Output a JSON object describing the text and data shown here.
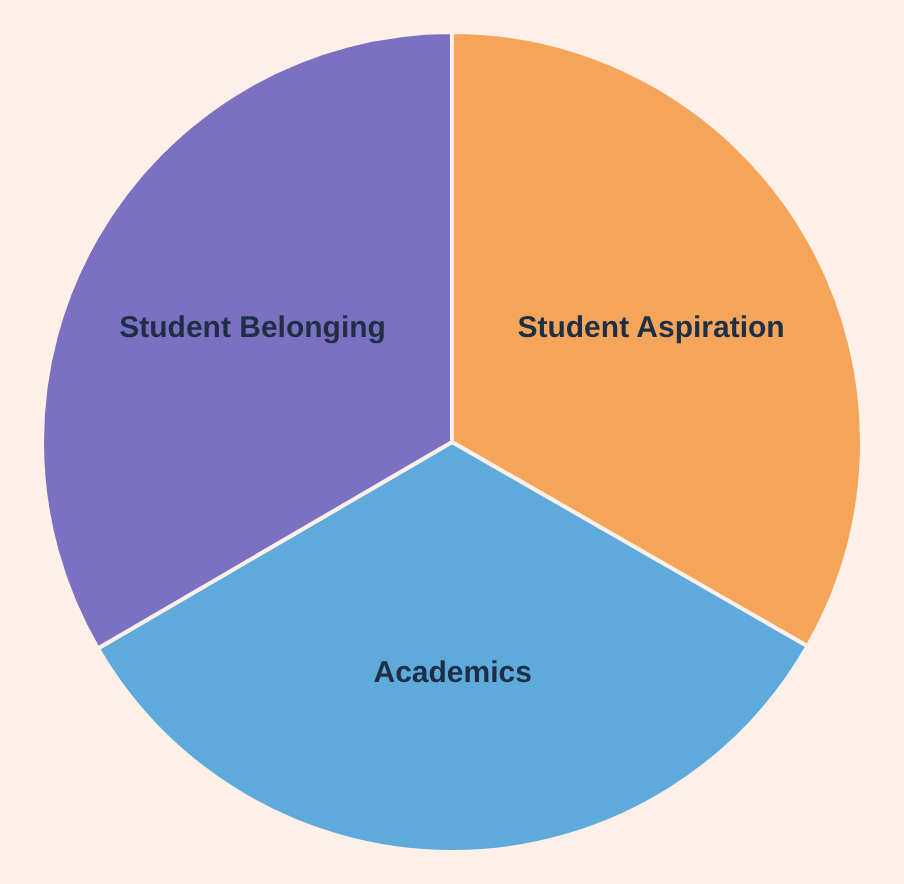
{
  "chart_data": {
    "type": "pie",
    "categories": [
      "Student Aspiration",
      "Academics",
      "Student Belonging"
    ],
    "values": [
      33.3,
      33.3,
      33.4
    ],
    "colors": [
      "#f5a55a",
      "#5eaadb",
      "#7b70c2"
    ]
  }
}
